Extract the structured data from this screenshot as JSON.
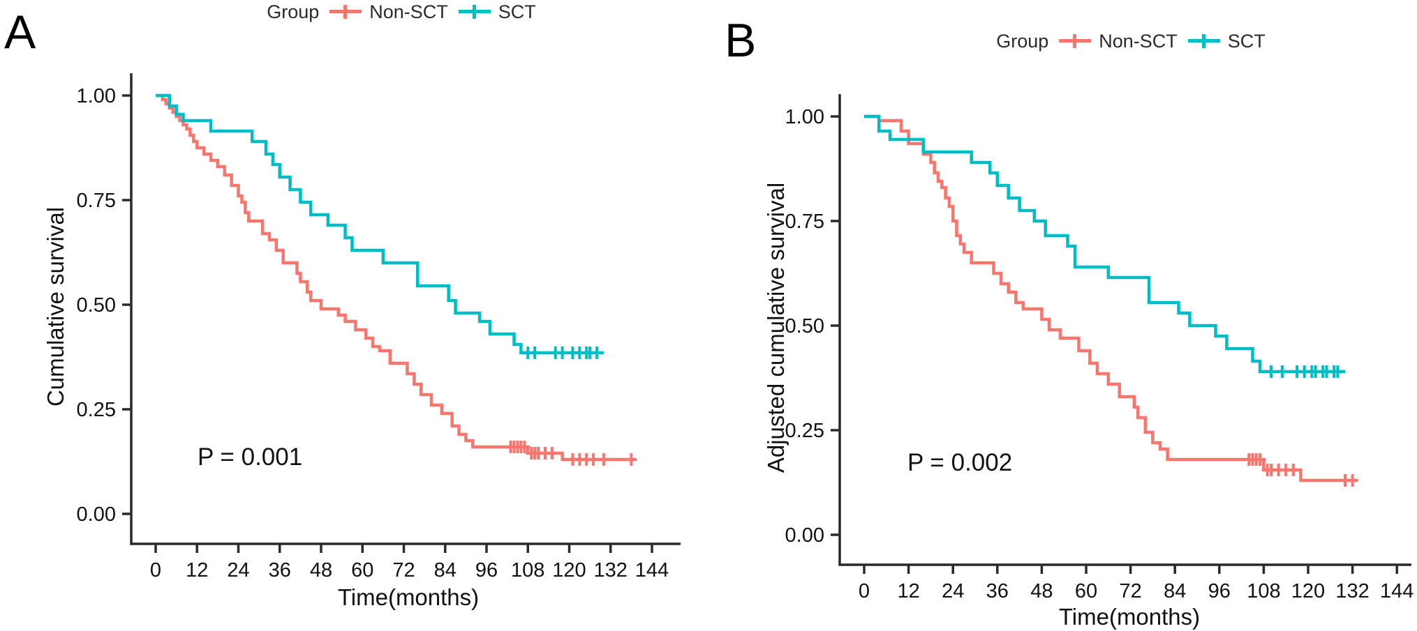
{
  "figure": {
    "background": "#ffffff",
    "description": "Two-panel Kaplan-Meier survival curves comparing SCT vs Non-SCT groups"
  },
  "chart_data": [
    {
      "panel": "A",
      "panel_label": "A",
      "type": "line",
      "subtype": "kaplan-meier-step",
      "title": "",
      "xlabel": "Time(months)",
      "ylabel": "Cumulative survival",
      "annotation": "P = 0.001",
      "xlim": [
        0,
        144
      ],
      "ylim": [
        0,
        1
      ],
      "grid": false,
      "x_ticks": [
        0,
        12,
        24,
        36,
        48,
        60,
        72,
        84,
        96,
        108,
        120,
        132,
        144
      ],
      "y_ticks": [
        1.0,
        0.75,
        0.5,
        0.25,
        0.0
      ],
      "legend": {
        "title": "Group",
        "position": "top"
      },
      "series": [
        {
          "name": "Non-SCT",
          "color": "#F8766D",
          "points": [
            [
              0,
              1.0
            ],
            [
              2,
              0.99
            ],
            [
              3,
              0.98
            ],
            [
              4,
              0.97
            ],
            [
              5,
              0.96
            ],
            [
              6,
              0.95
            ],
            [
              7,
              0.94
            ],
            [
              8,
              0.93
            ],
            [
              9,
              0.92
            ],
            [
              10,
              0.905
            ],
            [
              11,
              0.89
            ],
            [
              12,
              0.875
            ],
            [
              14,
              0.86
            ],
            [
              16,
              0.845
            ],
            [
              18,
              0.83
            ],
            [
              20,
              0.81
            ],
            [
              22,
              0.785
            ],
            [
              24,
              0.76
            ],
            [
              25,
              0.745
            ],
            [
              26,
              0.72
            ],
            [
              27,
              0.7
            ],
            [
              31,
              0.67
            ],
            [
              33,
              0.655
            ],
            [
              35,
              0.63
            ],
            [
              37,
              0.6
            ],
            [
              41,
              0.575
            ],
            [
              42,
              0.555
            ],
            [
              44,
              0.53
            ],
            [
              45,
              0.51
            ],
            [
              48,
              0.49
            ],
            [
              53,
              0.475
            ],
            [
              55,
              0.46
            ],
            [
              58,
              0.44
            ],
            [
              61,
              0.42
            ],
            [
              63,
              0.4
            ],
            [
              65,
              0.39
            ],
            [
              68,
              0.36
            ],
            [
              73,
              0.335
            ],
            [
              75,
              0.31
            ],
            [
              77,
              0.285
            ],
            [
              80,
              0.26
            ],
            [
              83,
              0.24
            ],
            [
              86,
              0.21
            ],
            [
              88,
              0.19
            ],
            [
              90,
              0.175
            ],
            [
              92,
              0.16
            ],
            [
              108,
              0.145
            ],
            [
              118,
              0.13
            ]
          ],
          "censor_times": [
            103,
            104,
            105,
            106,
            107,
            109,
            110,
            111,
            113,
            115,
            121,
            123,
            125,
            127,
            130,
            138
          ],
          "end_time": 139
        },
        {
          "name": "SCT",
          "color": "#00BCC4",
          "points": [
            [
              0,
              1.0
            ],
            [
              4,
              0.975
            ],
            [
              6,
              0.955
            ],
            [
              8,
              0.94
            ],
            [
              16,
              0.915
            ],
            [
              28,
              0.89
            ],
            [
              32,
              0.86
            ],
            [
              34,
              0.835
            ],
            [
              36,
              0.805
            ],
            [
              39,
              0.775
            ],
            [
              42,
              0.745
            ],
            [
              45,
              0.715
            ],
            [
              50,
              0.69
            ],
            [
              55,
              0.66
            ],
            [
              57,
              0.63
            ],
            [
              66,
              0.6
            ],
            [
              76,
              0.545
            ],
            [
              85,
              0.51
            ],
            [
              87,
              0.48
            ],
            [
              94,
              0.46
            ],
            [
              97,
              0.43
            ],
            [
              104,
              0.405
            ],
            [
              106,
              0.385
            ]
          ],
          "censor_times": [
            108,
            110,
            116,
            118,
            121,
            123,
            125,
            126,
            128
          ],
          "end_time": 130
        }
      ]
    },
    {
      "panel": "B",
      "panel_label": "B",
      "type": "line",
      "subtype": "kaplan-meier-step",
      "title": "",
      "xlabel": "Time(months)",
      "ylabel": "Adjusted cumulative survival",
      "annotation": "P = 0.002",
      "xlim": [
        0,
        144
      ],
      "ylim": [
        0,
        1
      ],
      "grid": false,
      "x_ticks": [
        0,
        12,
        24,
        36,
        48,
        60,
        72,
        84,
        96,
        108,
        120,
        132,
        144
      ],
      "y_ticks": [
        1.0,
        0.75,
        0.5,
        0.25,
        0.0
      ],
      "legend": {
        "title": "Group",
        "position": "top"
      },
      "series": [
        {
          "name": "Non-SCT",
          "color": "#F8766D",
          "points": [
            [
              0,
              1.0
            ],
            [
              4,
              0.99
            ],
            [
              10,
              0.965
            ],
            [
              12,
              0.935
            ],
            [
              16,
              0.91
            ],
            [
              18,
              0.89
            ],
            [
              19,
              0.865
            ],
            [
              20,
              0.845
            ],
            [
              21,
              0.83
            ],
            [
              22,
              0.805
            ],
            [
              23,
              0.785
            ],
            [
              24,
              0.75
            ],
            [
              25,
              0.715
            ],
            [
              26,
              0.695
            ],
            [
              27,
              0.675
            ],
            [
              29,
              0.65
            ],
            [
              35,
              0.625
            ],
            [
              37,
              0.6
            ],
            [
              39,
              0.58
            ],
            [
              41,
              0.555
            ],
            [
              43,
              0.54
            ],
            [
              48,
              0.515
            ],
            [
              50,
              0.49
            ],
            [
              53,
              0.47
            ],
            [
              58,
              0.44
            ],
            [
              61,
              0.41
            ],
            [
              63,
              0.385
            ],
            [
              66,
              0.36
            ],
            [
              69,
              0.33
            ],
            [
              73,
              0.305
            ],
            [
              74,
              0.28
            ],
            [
              76,
              0.245
            ],
            [
              78,
              0.22
            ],
            [
              80,
              0.205
            ],
            [
              82,
              0.18
            ],
            [
              108,
              0.155
            ],
            [
              118,
              0.13
            ]
          ],
          "censor_times": [
            104,
            105,
            106,
            107,
            109,
            110,
            112,
            114,
            116,
            130,
            132
          ],
          "end_time": 133
        },
        {
          "name": "SCT",
          "color": "#00BCC4",
          "points": [
            [
              0,
              1.0
            ],
            [
              4,
              0.965
            ],
            [
              7,
              0.945
            ],
            [
              16,
              0.915
            ],
            [
              29,
              0.89
            ],
            [
              34,
              0.865
            ],
            [
              36,
              0.835
            ],
            [
              39,
              0.805
            ],
            [
              42,
              0.775
            ],
            [
              46,
              0.75
            ],
            [
              49,
              0.715
            ],
            [
              55,
              0.69
            ],
            [
              57,
              0.64
            ],
            [
              66,
              0.615
            ],
            [
              77,
              0.555
            ],
            [
              85,
              0.53
            ],
            [
              88,
              0.5
            ],
            [
              95,
              0.475
            ],
            [
              98,
              0.445
            ],
            [
              105,
              0.415
            ],
            [
              107,
              0.39
            ]
          ],
          "censor_times": [
            110,
            113,
            117,
            119,
            121,
            122,
            124,
            125,
            127,
            128
          ],
          "end_time": 130
        }
      ]
    }
  ]
}
